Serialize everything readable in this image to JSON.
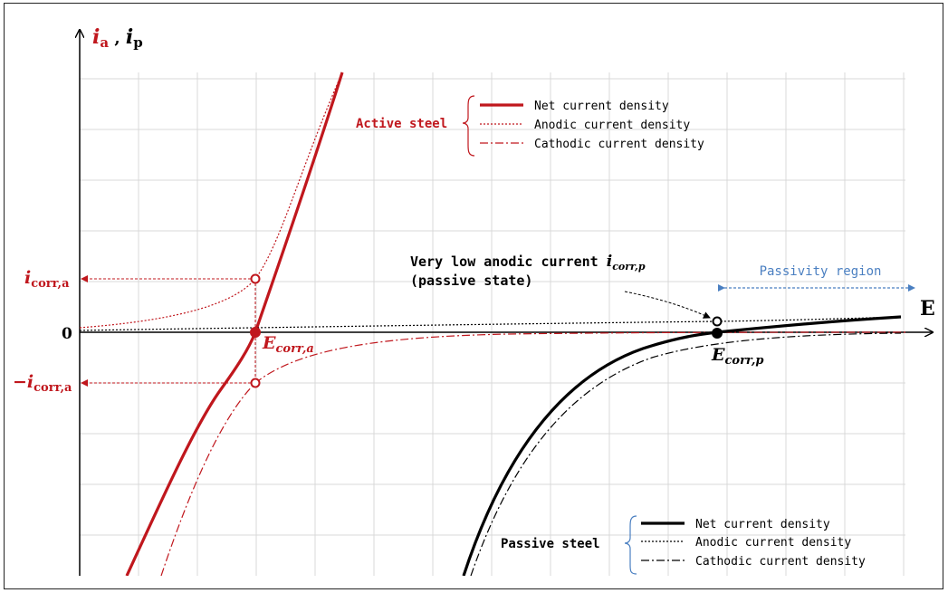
{
  "colors": {
    "active": "#c0171d",
    "passive": "#000000",
    "grid": "#d9d9d9",
    "passivity": "#4a7fc1",
    "frame": "#222222"
  },
  "axes": {
    "y_label_a": "i",
    "y_label_a_sub": "a",
    "y_label_sep": " , ",
    "y_label_p": "i",
    "y_label_p_sub": "p",
    "x_label": "E",
    "zero_label": "0"
  },
  "labels": {
    "icorr_a_pos": "i",
    "icorr_a_pos_sub": "corr,a",
    "icorr_a_neg": "−i",
    "icorr_a_neg_sub": "corr,a",
    "ecorr_a": "E",
    "ecorr_a_sub": "corr,a",
    "ecorr_p": "E",
    "ecorr_p_sub": "corr,p",
    "annotation_line1": "Very low anodic current ",
    "annotation_icorr": "i",
    "annotation_icorr_sub": "corr,p",
    "annotation_line2": "(passive state)",
    "passivity_region": "Passivity region"
  },
  "legend_active": {
    "group": "Active steel",
    "items": [
      "Net current density",
      "Anodic current density",
      "Cathodic current density"
    ]
  },
  "legend_passive": {
    "group": "Passive steel",
    "items": [
      "Net current density",
      "Anodic current density",
      "Cathodic current density"
    ]
  }
}
